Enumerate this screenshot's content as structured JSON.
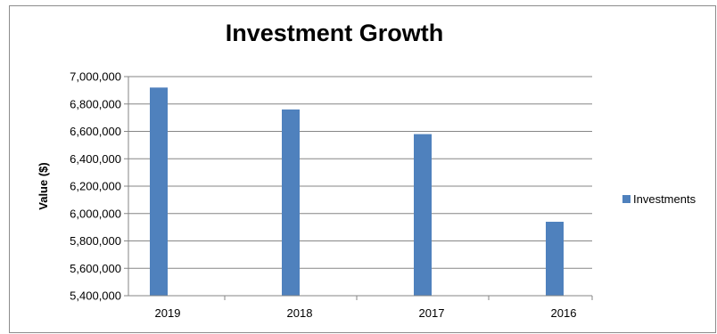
{
  "chart_data": {
    "type": "bar",
    "title": "Investment Growth",
    "xlabel": "",
    "ylabel": "Value ($)",
    "categories": [
      "2019",
      "2018",
      "2017",
      "2016"
    ],
    "series": [
      {
        "name": "Investments",
        "values": [
          6920000,
          6760000,
          6580000,
          5940000
        ]
      }
    ],
    "ylim": [
      5400000,
      7000000
    ],
    "yticks": [
      5400000,
      5600000,
      5800000,
      6000000,
      6200000,
      6400000,
      6600000,
      6800000,
      7000000
    ],
    "ytick_labels": [
      "5,400,000",
      "5,600,000",
      "5,800,000",
      "6,000,000",
      "6,200,000",
      "6,400,000",
      "6,600,000",
      "6,800,000",
      "7,000,000"
    ],
    "grid": true,
    "legend": "right",
    "colors": {
      "bar": "#4f81bd",
      "grid": "#868686",
      "axis": "#868686"
    }
  }
}
